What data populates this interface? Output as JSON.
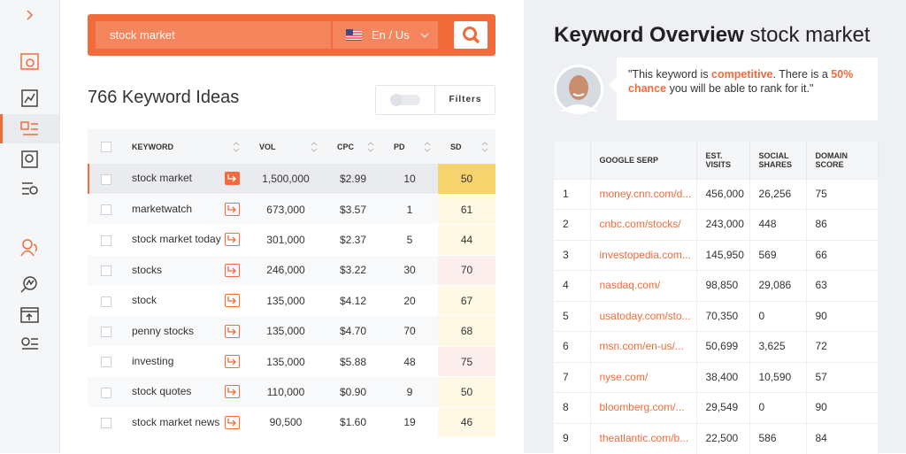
{
  "search": {
    "query": "stock market",
    "locale": "En / Us"
  },
  "ideas": {
    "title": "766 Keyword Ideas",
    "filters": "Filters",
    "headers": [
      "KEYWORD",
      "VOL",
      "CPC",
      "PD",
      "SD"
    ],
    "rows": [
      [
        "stock market",
        "1,500,000",
        "$2.99",
        "10",
        "50"
      ],
      [
        "marketwatch",
        "673,000",
        "$3.57",
        "1",
        "61"
      ],
      [
        "stock market today",
        "301,000",
        "$2.37",
        "5",
        "44"
      ],
      [
        "stocks",
        "246,000",
        "$3.22",
        "30",
        "70"
      ],
      [
        "stock",
        "135,000",
        "$4.12",
        "20",
        "67"
      ],
      [
        "penny stocks",
        "135,000",
        "$4.70",
        "70",
        "68"
      ],
      [
        "investing",
        "135,000",
        "$5.88",
        "48",
        "75"
      ],
      [
        "stock quotes",
        "110,000",
        "$0.90",
        "9",
        "50"
      ],
      [
        "stock market news",
        "90,500",
        "$1.60",
        "19",
        "46"
      ]
    ]
  },
  "overview": {
    "title": "Keyword Overview",
    "keyword": "stock market",
    "quote": [
      "\"This keyword is ",
      "competitive",
      ". There is a ",
      "50% chance",
      " you will be able to rank for it.\""
    ],
    "headers": [
      "GOOGLE SERP",
      "EST. VISITS",
      "SOCIAL SHARES",
      "DOMAIN SCORE"
    ],
    "rows": [
      [
        "1",
        "money.cnn.com/d...",
        "456,000",
        "26,256",
        "75"
      ],
      [
        "2",
        "cnbc.com/stocks/",
        "243,000",
        "448",
        "86"
      ],
      [
        "3",
        "investopedia.com...",
        "145,950",
        "569",
        "66"
      ],
      [
        "4",
        "nasdaq.com/",
        "98,850",
        "29,086",
        "63"
      ],
      [
        "5",
        "usatoday.com/sto...",
        "70,350",
        "0",
        "90"
      ],
      [
        "6",
        "msn.com/en-us/...",
        "50,699",
        "3,625",
        "72"
      ],
      [
        "7",
        "nyse.com/",
        "38,400",
        "10,590",
        "57"
      ],
      [
        "8",
        "bloomberg.com/...",
        "29,549",
        "0",
        "90"
      ],
      [
        "9",
        "theatlantic.com/b...",
        "22,500",
        "586",
        "84"
      ]
    ]
  }
}
